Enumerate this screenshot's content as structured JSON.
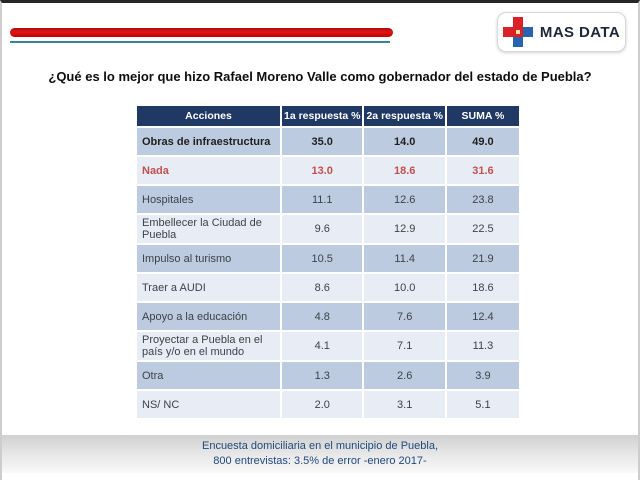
{
  "logo": {
    "text": "MAS DATA"
  },
  "title": "¿Qué es lo mejor que hizo Rafael Moreno Valle como gobernador del estado de Puebla?",
  "colors": {
    "header_bg": "#1F3864",
    "row_medium": "#BCCBDF",
    "row_light": "#E8ECF4",
    "highlight_red": "#C0504D",
    "accent_bar_red": "#C00000",
    "accent_line_teal": "#35849B",
    "footer_text": "#1F497D"
  },
  "table": {
    "headers": [
      "Acciones",
      "1a respuesta %",
      "2a respuesta %",
      "SUMA %"
    ],
    "rows": [
      {
        "label": "Obras de infraestructura",
        "r1": "35.0",
        "r2": "14.0",
        "sum": "49.0"
      },
      {
        "label": "Nada",
        "r1": "13.0",
        "r2": "18.6",
        "sum": "31.6"
      },
      {
        "label": "Hospitales",
        "r1": "11.1",
        "r2": "12.6",
        "sum": "23.8"
      },
      {
        "label": "Embellecer la Ciudad de Puebla",
        "r1": "9.6",
        "r2": "12.9",
        "sum": "22.5"
      },
      {
        "label": "Impulso al turismo",
        "r1": "10.5",
        "r2": "11.4",
        "sum": "21.9"
      },
      {
        "label": "Traer a AUDI",
        "r1": "8.6",
        "r2": "10.0",
        "sum": "18.6"
      },
      {
        "label": "Apoyo a la educación",
        "r1": "4.8",
        "r2": "7.6",
        "sum": "12.4"
      },
      {
        "label": "Proyectar a Puebla en el país y/o en el mundo",
        "r1": "4.1",
        "r2": "7.1",
        "sum": "11.3"
      },
      {
        "label": "Otra",
        "r1": "1.3",
        "r2": "2.6",
        "sum": "3.9"
      },
      {
        "label": "NS/ NC",
        "r1": "2.0",
        "r2": "3.1",
        "sum": "5.1"
      }
    ]
  },
  "footer": {
    "line1": "Encuesta domiciliaria en el municipio de Puebla,",
    "line2": "800 entrevistas: 3.5% de error -enero 2017-"
  },
  "chart_data": {
    "type": "table",
    "title": "¿Qué es lo mejor que hizo Rafael Moreno Valle como gobernador del estado de Puebla?",
    "columns": [
      "Acciones",
      "1a respuesta %",
      "2a respuesta %",
      "SUMA %"
    ],
    "rows": [
      [
        "Obras de infraestructura",
        35.0,
        14.0,
        49.0
      ],
      [
        "Nada",
        13.0,
        18.6,
        31.6
      ],
      [
        "Hospitales",
        11.1,
        12.6,
        23.8
      ],
      [
        "Embellecer la Ciudad de Puebla",
        9.6,
        12.9,
        22.5
      ],
      [
        "Impulso al turismo",
        10.5,
        11.4,
        21.9
      ],
      [
        "Traer a AUDI",
        8.6,
        10.0,
        18.6
      ],
      [
        "Apoyo a la educación",
        4.8,
        7.6,
        12.4
      ],
      [
        "Proyectar a Puebla en el país y/o en el mundo",
        4.1,
        7.1,
        11.3
      ],
      [
        "Otra",
        1.3,
        2.6,
        3.9
      ],
      [
        "NS/ NC",
        2.0,
        3.1,
        5.1
      ]
    ],
    "highlighted_row": "Nada",
    "bold_row": "Obras de infraestructura",
    "source_note": "Encuesta domiciliaria en el municipio de Puebla, 800 entrevistas: 3.5% de error -enero 2017-"
  }
}
